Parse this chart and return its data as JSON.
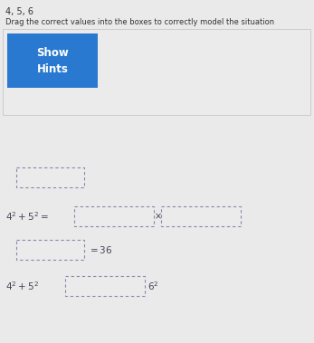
{
  "title_text": "4, 5, 6",
  "instruction_text": "Drag the correct values into the boxes to correctly model the situation",
  "button_text": "Show\nHints",
  "button_color": "#2979D0",
  "button_text_color": "#ffffff",
  "bg_color": "#eaeaea",
  "panel_bg": "#ebebeb",
  "panel_border": "#cccccc",
  "box_border_color": "#8888aa",
  "box_fill": "#ebebeb",
  "math_color": "#444455",
  "title_color": "#333333",
  "instr_color": "#333333",
  "font_size_title": 7,
  "font_size_instr": 6,
  "font_size_button": 8.5,
  "font_size_math": 7.5,
  "font_size_sep": 7
}
